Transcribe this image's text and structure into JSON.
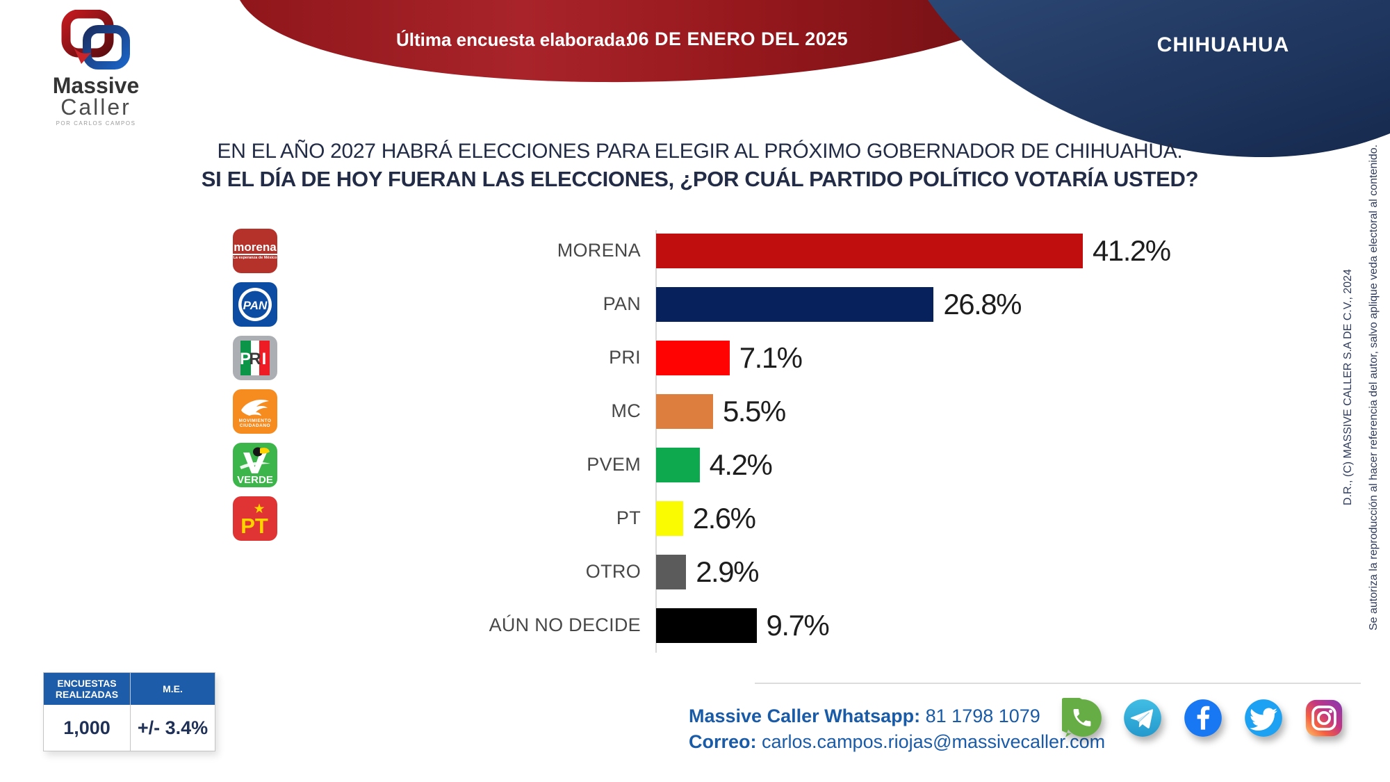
{
  "header": {
    "last_poll_label": "Última encuesta elaborada:",
    "last_poll_date": "06 DE ENERO DEL 2025",
    "state": "CHIHUAHUA",
    "banner_color": "#9e1b20",
    "blob_color": "#1e3560"
  },
  "logo": {
    "line1": "Massive",
    "line2": "Caller",
    "tagline": "POR CARLOS CAMPOS"
  },
  "question": {
    "line1": "EN EL AÑO 2027 HABRÁ ELECCIONES PARA ELEGIR AL PRÓXIMO GOBERNADOR DE CHIHUAHUA.",
    "line2": "SI EL DÍA DE HOY FUERAN LAS ELECCIONES, ¿POR CUÁL PARTIDO POLÍTICO VOTARÍA USTED?"
  },
  "chart_data": {
    "type": "bar",
    "orientation": "horizontal",
    "unit": "%",
    "xlim": [
      0,
      45
    ],
    "grid": false,
    "categories": [
      "MORENA",
      "PAN",
      "PRI",
      "MC",
      "PVEM",
      "PT",
      "OTRO",
      "AÚN NO DECIDE"
    ],
    "values": [
      41.2,
      26.8,
      7.1,
      5.5,
      4.2,
      2.6,
      2.9,
      9.7
    ],
    "rows": [
      {
        "label": "MORENA",
        "value": 41.2,
        "display": "41.2%",
        "color": "#c00d0d",
        "logo": "morena"
      },
      {
        "label": "PAN",
        "value": 26.8,
        "display": "26.8%",
        "color": "#06215c",
        "logo": "pan"
      },
      {
        "label": "PRI",
        "value": 7.1,
        "display": "7.1%",
        "color": "#ff0303",
        "logo": "pri"
      },
      {
        "label": "MC",
        "value": 5.5,
        "display": "5.5%",
        "color": "#dd7e3e",
        "logo": "mc"
      },
      {
        "label": "PVEM",
        "value": 4.2,
        "display": "4.2%",
        "color": "#0ea94e",
        "logo": "pvem"
      },
      {
        "label": "PT",
        "value": 2.6,
        "display": "2.6%",
        "color": "#fafa00",
        "logo": "pt"
      },
      {
        "label": "OTRO",
        "value": 2.9,
        "display": "2.9%",
        "color": "#5b5b5b",
        "logo": null
      },
      {
        "label": "AÚN NO DECIDE",
        "value": 9.7,
        "display": "9.7%",
        "color": "#000000",
        "logo": null
      }
    ]
  },
  "stats_table": {
    "headers": [
      "ENCUESTAS REALIZADAS",
      "M.E."
    ],
    "values": [
      "1,000",
      "+/- 3.4%"
    ]
  },
  "contact": {
    "whatsapp_label": "Massive Caller Whatsapp:",
    "whatsapp_number": "81 1798 1079",
    "email_label": "Correo:",
    "email": "carlos.campos.riojas@massivecaller.com",
    "text_color": "#1a5ba8"
  },
  "social_icons": [
    "whatsapp",
    "telegram",
    "facebook",
    "twitter",
    "instagram"
  ],
  "copyright": {
    "line1": "D.R., (C) MASSIVE CALLER S.A DE C.V., 2024",
    "line2": "Se autoriza la reproducción al hacer referencia del autor, salvo aplique veda electoral al contenido."
  }
}
